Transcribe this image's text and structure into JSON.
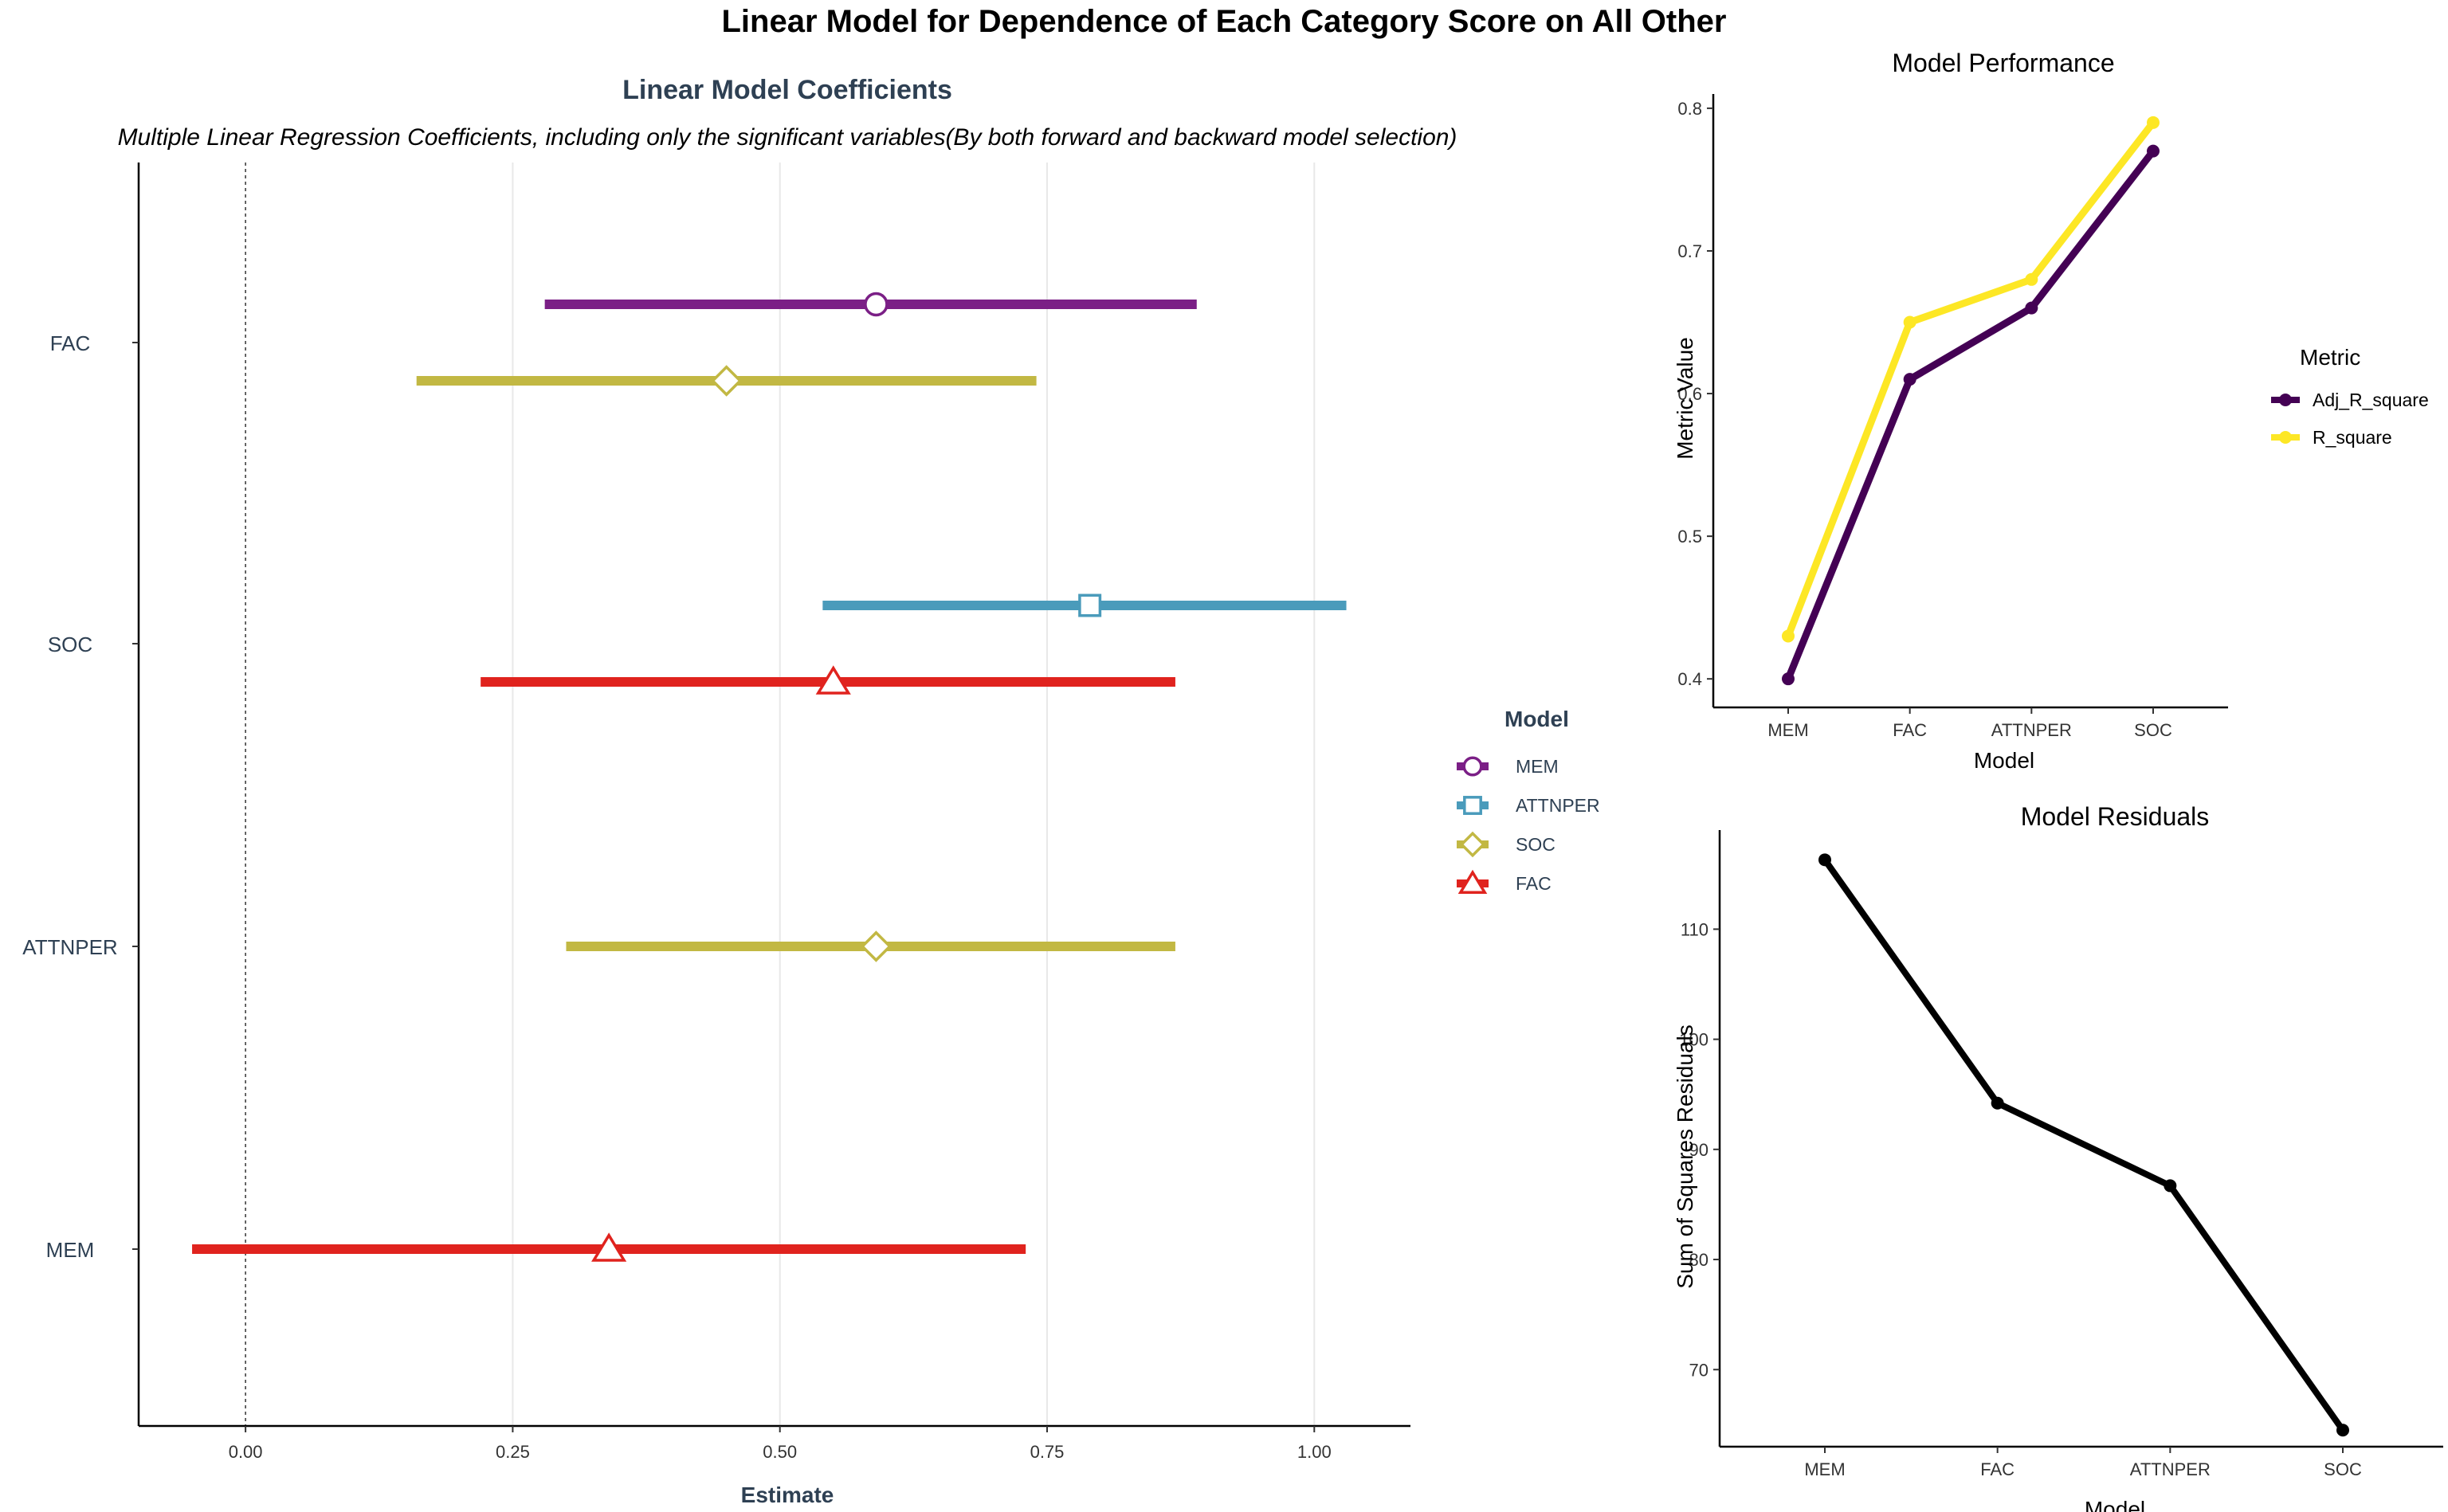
{
  "page_title": "Linear Model for Dependence of Each Category Score on All Other",
  "chart_data": [
    {
      "type": "scatter",
      "subtype": "coefficient-interval",
      "title": "Linear Model Coefficients",
      "subtitle": "Multiple Linear Regression Coefficients, including only the significant variables(By both forward and backward model selection)",
      "xlabel": "Estimate",
      "ylabel": "",
      "xlim": [
        -0.1,
        1.09
      ],
      "xticks": [
        0.0,
        0.25,
        0.5,
        0.75,
        1.0
      ],
      "xtick_labels": [
        "0.00",
        "0.25",
        "0.50",
        "0.75",
        "1.00"
      ],
      "categories": [
        "FAC",
        "SOC",
        "ATTNPER",
        "MEM"
      ],
      "reference_line_x": 0,
      "grid": "vertical-major",
      "legend": {
        "title": "Model",
        "placement": "right"
      },
      "series": [
        {
          "name": "MEM",
          "color": "#7B1F86",
          "shape": "circle",
          "points": [
            {
              "category": "FAC",
              "estimate": 0.59,
              "low": 0.28,
              "high": 0.89
            }
          ]
        },
        {
          "name": "ATTNPER",
          "color": "#4A9BBB",
          "shape": "square",
          "points": [
            {
              "category": "SOC",
              "estimate": 0.79,
              "low": 0.54,
              "high": 1.03
            }
          ]
        },
        {
          "name": "SOC",
          "color": "#C2B843",
          "shape": "diamond",
          "points": [
            {
              "category": "FAC",
              "estimate": 0.45,
              "low": 0.16,
              "high": 0.74
            },
            {
              "category": "ATTNPER",
              "estimate": 0.59,
              "low": 0.3,
              "high": 0.87
            }
          ]
        },
        {
          "name": "FAC",
          "color": "#E0231E",
          "shape": "triangle",
          "points": [
            {
              "category": "SOC",
              "estimate": 0.55,
              "low": 0.22,
              "high": 0.87
            },
            {
              "category": "MEM",
              "estimate": 0.34,
              "low": -0.05,
              "high": 0.73
            }
          ]
        }
      ]
    },
    {
      "type": "line",
      "title": "Model Performance",
      "xlabel": "Model",
      "ylabel": "Metric Value",
      "categories": [
        "MEM",
        "FAC",
        "ATTNPER",
        "SOC"
      ],
      "ylim": [
        0.38,
        0.81
      ],
      "yticks": [
        0.4,
        0.5,
        0.6,
        0.7,
        0.8
      ],
      "ytick_labels": [
        "0.4",
        "0.5",
        "0.6",
        "0.7",
        "0.8"
      ],
      "legend": {
        "title": "Metric",
        "placement": "right"
      },
      "series": [
        {
          "name": "Adj_R_square",
          "color": "#440154",
          "values": [
            0.4,
            0.61,
            0.66,
            0.77
          ]
        },
        {
          "name": "R_square",
          "color": "#FDE725",
          "values": [
            0.43,
            0.65,
            0.68,
            0.79
          ]
        }
      ]
    },
    {
      "type": "line",
      "title": "Model Residuals",
      "xlabel": "Model",
      "ylabel": "Sum of Squares Residuals",
      "categories": [
        "MEM",
        "FAC",
        "ATTNPER",
        "SOC"
      ],
      "ylim": [
        63,
        119
      ],
      "yticks": [
        70,
        80,
        90,
        100,
        110
      ],
      "ytick_labels": [
        "70",
        "80",
        "90",
        "100",
        "110"
      ],
      "series": [
        {
          "color": "#000000",
          "values": [
            116.3,
            94.2,
            86.7,
            64.5
          ]
        }
      ]
    }
  ]
}
